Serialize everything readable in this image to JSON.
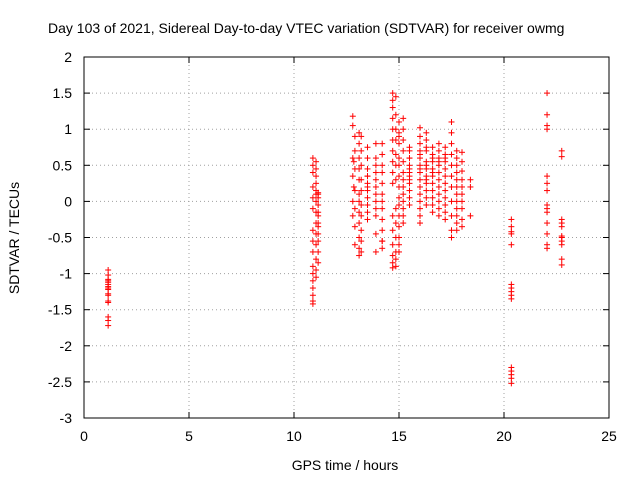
{
  "chart_data": {
    "type": "scatter",
    "title": "Day 103 of 2021, Sidereal Day-to-day VTEC variation (SDTVAR) for receiver owmg",
    "xlabel": "GPS time / hours",
    "ylabel": "SDTVAR / TECUs",
    "xlim": [
      0,
      25
    ],
    "ylim": [
      -3,
      2
    ],
    "xticks": [
      "0",
      "5",
      "10",
      "15",
      "20",
      "25"
    ],
    "yticks": [
      "2",
      "1.5",
      "1",
      "0.5",
      "0",
      "-0.5",
      "-1",
      "-1.5",
      "-2",
      "-2.5",
      "-3"
    ],
    "grid": true,
    "marker": "+",
    "color": "#ff0000",
    "series": [
      {
        "name": "SDTVAR",
        "x": [
          1.15,
          1.15,
          1.15,
          1.15,
          1.15,
          1.15,
          1.15,
          1.15,
          1.15,
          1.15,
          1.15,
          1.15,
          1.15,
          1.15,
          1.15,
          1.15,
          10.9,
          10.9,
          10.9,
          10.9,
          10.9,
          10.9,
          10.9,
          10.9,
          10.9,
          10.9,
          10.9,
          10.9,
          10.9,
          10.9,
          10.9,
          10.9,
          11.05,
          11.05,
          11.05,
          11.05,
          11.05,
          11.05,
          11.05,
          11.05,
          11.05,
          11.05,
          11.05,
          11.05,
          11.05,
          11.05,
          11.15,
          11.15,
          11.15,
          11.15,
          11.15,
          11.15,
          11.15,
          11.15,
          11.15,
          11.15,
          11.15,
          11.15,
          12.8,
          12.8,
          12.8,
          12.8,
          12.8,
          12.8,
          12.85,
          12.85,
          12.9,
          12.9,
          12.9,
          12.9,
          12.9,
          12.9,
          12.9,
          13.1,
          13.1,
          13.1,
          13.1,
          13.1,
          13.1,
          13.1,
          13.1,
          13.1,
          13.1,
          13.1,
          13.1,
          13.2,
          13.2,
          13.2,
          13.2,
          13.2,
          13.2,
          13.2,
          13.2,
          13.2,
          13.2,
          13.5,
          13.5,
          13.5,
          13.5,
          13.5,
          13.5,
          13.5,
          13.5,
          13.5,
          13.5,
          13.5,
          13.5,
          13.9,
          13.9,
          13.9,
          13.9,
          13.9,
          13.9,
          13.9,
          13.9,
          13.9,
          13.9,
          13.9,
          13.9,
          14.2,
          14.2,
          14.2,
          14.2,
          14.2,
          14.2,
          14.2,
          14.2,
          14.2,
          14.2,
          14.2,
          14.2,
          14.2,
          14.7,
          14.7,
          14.7,
          14.7,
          14.7,
          14.7,
          14.7,
          14.7,
          14.7,
          14.7,
          14.7,
          14.7,
          14.7,
          14.7,
          14.7,
          14.7,
          14.85,
          14.85,
          14.85,
          14.85,
          14.85,
          14.85,
          14.85,
          14.85,
          14.85,
          14.85,
          14.85,
          14.85,
          14.85,
          15.0,
          15.0,
          15.0,
          15.0,
          15.0,
          15.0,
          15.0,
          15.0,
          15.0,
          15.0,
          15.0,
          15.0,
          15.0,
          15.0,
          15.0,
          15.2,
          15.2,
          15.2,
          15.2,
          15.2,
          15.2,
          15.2,
          15.2,
          15.2,
          15.2,
          15.2,
          15.2,
          15.2,
          15.5,
          15.5,
          15.5,
          15.5,
          15.5,
          15.5,
          15.5,
          15.5,
          15.5,
          15.5,
          15.5,
          15.5,
          15.5,
          16.0,
          16.0,
          16.0,
          16.0,
          16.0,
          16.0,
          16.0,
          16.0,
          16.0,
          16.0,
          16.0,
          16.0,
          16.0,
          16.0,
          16.0,
          16.0,
          16.3,
          16.3,
          16.3,
          16.3,
          16.3,
          16.3,
          16.3,
          16.3,
          16.3,
          16.3,
          16.3,
          16.3,
          16.3,
          16.6,
          16.6,
          16.6,
          16.6,
          16.6,
          16.6,
          16.6,
          16.6,
          16.6,
          16.6,
          16.6,
          16.6,
          16.9,
          16.9,
          16.9,
          16.9,
          16.9,
          16.9,
          16.9,
          16.9,
          16.9,
          16.9,
          16.9,
          16.9,
          17.2,
          17.2,
          17.2,
          17.2,
          17.2,
          17.2,
          17.2,
          17.2,
          17.2,
          17.2,
          17.2,
          17.2,
          17.5,
          17.5,
          17.5,
          17.5,
          17.5,
          17.5,
          17.5,
          17.5,
          17.5,
          17.5,
          17.5,
          17.75,
          17.75,
          17.75,
          17.75,
          17.75,
          17.75,
          17.75,
          17.75,
          17.75,
          17.75,
          17.75,
          17.75,
          18.0,
          18.0,
          18.0,
          18.0,
          18.0,
          18.0,
          18.0,
          18.0,
          18.0,
          18.0,
          18.4,
          18.4,
          18.4,
          20.35,
          20.35,
          20.35,
          20.35,
          20.35,
          20.35,
          20.35,
          20.35,
          20.35,
          20.35,
          20.35,
          20.35,
          20.35,
          20.35,
          20.35,
          22.05,
          22.05,
          22.05,
          22.05,
          22.05,
          22.05,
          22.05,
          22.05,
          22.05,
          22.05,
          22.05,
          22.05,
          22.05,
          22.05,
          22.75,
          22.75,
          22.75,
          22.75,
          22.75,
          22.75,
          22.75,
          22.75,
          22.75,
          22.75,
          22.75
        ],
        "y": [
          -0.95,
          -1.02,
          -1.08,
          -1.1,
          -1.12,
          -1.15,
          -1.18,
          -1.2,
          -1.22,
          -1.28,
          -1.3,
          -1.38,
          -1.4,
          -1.6,
          -1.65,
          -1.72,
          -1.42,
          -1.38,
          -1.3,
          -1.2,
          -1.1,
          -1.0,
          -0.9,
          -0.7,
          -0.55,
          -0.4,
          -0.1,
          0.05,
          0.2,
          0.4,
          0.5,
          0.6,
          -1.05,
          -0.95,
          -0.8,
          -0.6,
          -0.45,
          -0.3,
          -0.15,
          0.0,
          0.1,
          0.25,
          0.35,
          0.45,
          0.55,
          0.15,
          -0.85,
          -0.7,
          -0.55,
          -0.45,
          -0.3,
          -0.2,
          -0.05,
          0.05,
          0.1,
          0.12,
          -0.15,
          -0.35,
          1.18,
          1.05,
          0.6,
          0.35,
          0.0,
          -0.2,
          0.55,
          0.2,
          0.9,
          0.7,
          0.45,
          0.15,
          -0.1,
          -0.35,
          -0.6,
          0.95,
          0.8,
          0.6,
          0.45,
          0.3,
          0.1,
          0.0,
          -0.15,
          -0.3,
          -0.5,
          -0.65,
          -0.75,
          0.9,
          0.7,
          0.5,
          0.3,
          0.15,
          -0.05,
          -0.2,
          -0.4,
          -0.55,
          -0.7,
          0.75,
          0.6,
          0.45,
          0.35,
          0.25,
          0.15,
          0.05,
          -0.05,
          -0.15,
          -0.25,
          0.35,
          0.2,
          0.8,
          0.6,
          0.5,
          0.4,
          0.3,
          0.2,
          0.1,
          0.0,
          -0.1,
          -0.2,
          -0.45,
          -0.7,
          0.8,
          0.65,
          0.5,
          0.4,
          0.25,
          0.1,
          0.0,
          -0.1,
          -0.25,
          -0.4,
          -0.55,
          -0.65,
          -0.55,
          1.5,
          1.4,
          1.3,
          1.15,
          1.0,
          0.85,
          0.7,
          0.55,
          0.4,
          0.25,
          -0.2,
          -0.4,
          -0.6,
          -0.75,
          -0.85,
          -0.92,
          1.45,
          1.2,
          1.0,
          0.85,
          0.65,
          0.5,
          0.3,
          -0.1,
          -0.3,
          -0.5,
          -0.7,
          -0.8,
          -0.9,
          1.1,
          0.95,
          0.8,
          0.6,
          0.5,
          0.35,
          0.2,
          0.05,
          -0.05,
          -0.2,
          -0.35,
          -0.5,
          -0.6,
          -0.7,
          0.9,
          1.15,
          1.0,
          0.85,
          0.7,
          0.55,
          0.4,
          0.3,
          0.2,
          0.1,
          0.0,
          -0.1,
          -0.2,
          -0.3,
          0.75,
          0.6,
          0.45,
          0.35,
          0.25,
          0.15,
          0.05,
          -0.05,
          0.5,
          0.4,
          0.3,
          0.6,
          0.7,
          1.02,
          0.9,
          0.8,
          0.7,
          0.6,
          0.5,
          0.4,
          0.3,
          0.2,
          0.1,
          0.0,
          -0.1,
          -0.2,
          -0.3,
          0.65,
          0.45,
          0.95,
          0.85,
          0.7,
          0.55,
          0.45,
          0.35,
          0.25,
          0.15,
          0.05,
          -0.05,
          0.75,
          0.5,
          0.3,
          0.75,
          0.65,
          0.55,
          0.45,
          0.35,
          0.25,
          0.15,
          0.05,
          -0.05,
          -0.15,
          0.6,
          0.4,
          0.8,
          0.7,
          0.6,
          0.5,
          0.4,
          0.3,
          0.2,
          0.1,
          0.0,
          -0.1,
          -0.2,
          0.55,
          0.75,
          0.65,
          0.55,
          0.45,
          0.35,
          0.25,
          0.15,
          0.05,
          -0.05,
          -0.15,
          -0.25,
          0.6,
          1.1,
          0.95,
          0.8,
          0.65,
          0.5,
          0.35,
          0.2,
          0.0,
          -0.2,
          -0.4,
          -0.5,
          0.7,
          0.6,
          0.5,
          0.4,
          0.3,
          0.2,
          0.1,
          0.0,
          -0.1,
          -0.2,
          -0.3,
          -0.4,
          0.68,
          0.55,
          0.42,
          0.3,
          0.2,
          0.1,
          0.0,
          -0.1,
          -0.25,
          -0.35,
          0.3,
          0.2,
          -0.2,
          -0.25,
          -0.35,
          -0.42,
          -0.45,
          -0.6,
          -1.15,
          -1.2,
          -1.25,
          -1.3,
          -1.35,
          -2.3,
          -2.35,
          -2.4,
          -2.45,
          -2.52,
          1.5,
          1.2,
          1.05,
          1.0,
          0.35,
          0.25,
          0.15,
          -0.05,
          -0.1,
          -0.15,
          -0.3,
          -0.45,
          -0.6,
          -0.65,
          0.7,
          0.62,
          -0.25,
          -0.3,
          -0.35,
          -0.48,
          -0.5,
          -0.55,
          -0.6,
          -0.8,
          -0.88
        ]
      }
    ]
  }
}
